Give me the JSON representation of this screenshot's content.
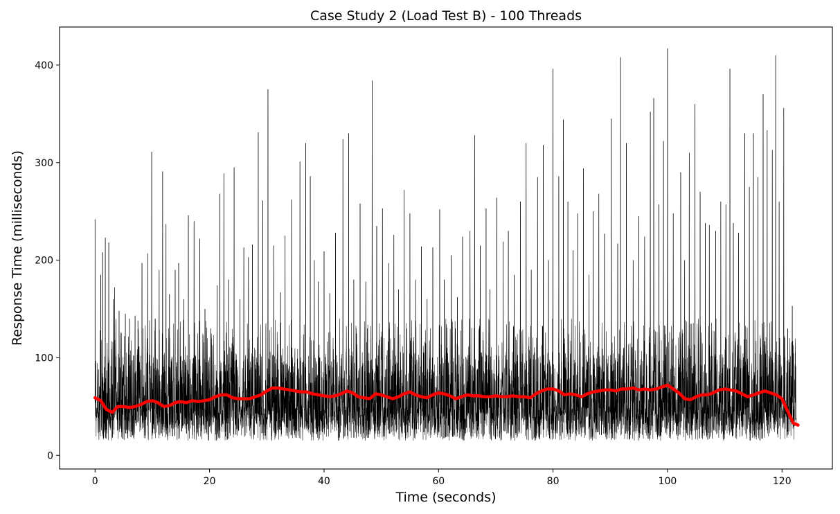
{
  "chart_data": {
    "type": "line",
    "title": "Case Study 2 (Load Test B) - 100 Threads",
    "xlabel": "Time (seconds)",
    "ylabel": "Response Time (milliseconds)",
    "xlim": [
      -6.2,
      128.8
    ],
    "ylim": [
      -14,
      439
    ],
    "x_ticks": [
      0,
      20,
      40,
      60,
      80,
      100,
      120
    ],
    "y_ticks": [
      0,
      100,
      200,
      300,
      400
    ],
    "grid": false,
    "legend": "none",
    "colors": {
      "raw": "#000000",
      "smoothed": "#ff0000",
      "frame": "#000000"
    },
    "series": [
      {
        "role": "raw",
        "x_range": [
          0,
          122.5
        ],
        "baseline_band": [
          15,
          90
        ],
        "peaks": [
          {
            "x": 0.0,
            "y": 242
          },
          {
            "x": 0.6,
            "y": 88
          },
          {
            "x": 1.0,
            "y": 185
          },
          {
            "x": 1.3,
            "y": 208
          },
          {
            "x": 1.8,
            "y": 223
          },
          {
            "x": 2.4,
            "y": 218
          },
          {
            "x": 3.2,
            "y": 160
          },
          {
            "x": 3.4,
            "y": 172
          },
          {
            "x": 4.2,
            "y": 148
          },
          {
            "x": 5.3,
            "y": 145
          },
          {
            "x": 6.0,
            "y": 140
          },
          {
            "x": 7.0,
            "y": 143
          },
          {
            "x": 7.5,
            "y": 138
          },
          {
            "x": 8.2,
            "y": 197
          },
          {
            "x": 9.2,
            "y": 207
          },
          {
            "x": 9.9,
            "y": 311
          },
          {
            "x": 10.5,
            "y": 140
          },
          {
            "x": 11.2,
            "y": 190
          },
          {
            "x": 11.8,
            "y": 291
          },
          {
            "x": 12.4,
            "y": 237
          },
          {
            "x": 13.0,
            "y": 165
          },
          {
            "x": 14.0,
            "y": 190
          },
          {
            "x": 14.6,
            "y": 197
          },
          {
            "x": 15.5,
            "y": 160
          },
          {
            "x": 16.3,
            "y": 246
          },
          {
            "x": 17.3,
            "y": 240
          },
          {
            "x": 18.3,
            "y": 222
          },
          {
            "x": 19.2,
            "y": 150
          },
          {
            "x": 20.2,
            "y": 130
          },
          {
            "x": 21.3,
            "y": 174
          },
          {
            "x": 21.8,
            "y": 268
          },
          {
            "x": 22.5,
            "y": 289
          },
          {
            "x": 23.3,
            "y": 180
          },
          {
            "x": 24.3,
            "y": 295
          },
          {
            "x": 25.3,
            "y": 160
          },
          {
            "x": 26.0,
            "y": 213
          },
          {
            "x": 26.8,
            "y": 203
          },
          {
            "x": 27.5,
            "y": 216
          },
          {
            "x": 28.5,
            "y": 331
          },
          {
            "x": 29.3,
            "y": 261
          },
          {
            "x": 30.2,
            "y": 375
          },
          {
            "x": 31.2,
            "y": 215
          },
          {
            "x": 32.4,
            "y": 167
          },
          {
            "x": 33.2,
            "y": 225
          },
          {
            "x": 34.3,
            "y": 262
          },
          {
            "x": 35.8,
            "y": 301
          },
          {
            "x": 36.8,
            "y": 320
          },
          {
            "x": 37.6,
            "y": 286
          },
          {
            "x": 38.3,
            "y": 200
          },
          {
            "x": 39.0,
            "y": 178
          },
          {
            "x": 40.0,
            "y": 209
          },
          {
            "x": 41.0,
            "y": 166
          },
          {
            "x": 42.0,
            "y": 228
          },
          {
            "x": 43.3,
            "y": 324
          },
          {
            "x": 44.3,
            "y": 330
          },
          {
            "x": 45.2,
            "y": 180
          },
          {
            "x": 46.3,
            "y": 258
          },
          {
            "x": 47.3,
            "y": 178
          },
          {
            "x": 48.4,
            "y": 384
          },
          {
            "x": 49.2,
            "y": 235
          },
          {
            "x": 50.2,
            "y": 253
          },
          {
            "x": 51.3,
            "y": 197
          },
          {
            "x": 52.2,
            "y": 226
          },
          {
            "x": 53.0,
            "y": 170
          },
          {
            "x": 54.0,
            "y": 272
          },
          {
            "x": 55.0,
            "y": 248
          },
          {
            "x": 56.0,
            "y": 180
          },
          {
            "x": 57.0,
            "y": 214
          },
          {
            "x": 58.0,
            "y": 160
          },
          {
            "x": 59.0,
            "y": 213
          },
          {
            "x": 60.2,
            "y": 252
          },
          {
            "x": 61.0,
            "y": 180
          },
          {
            "x": 62.2,
            "y": 205
          },
          {
            "x": 63.3,
            "y": 162
          },
          {
            "x": 64.2,
            "y": 224
          },
          {
            "x": 65.5,
            "y": 230
          },
          {
            "x": 66.3,
            "y": 328
          },
          {
            "x": 67.3,
            "y": 215
          },
          {
            "x": 68.3,
            "y": 253
          },
          {
            "x": 69.0,
            "y": 170
          },
          {
            "x": 70.2,
            "y": 264
          },
          {
            "x": 71.3,
            "y": 219
          },
          {
            "x": 72.2,
            "y": 230
          },
          {
            "x": 73.2,
            "y": 185
          },
          {
            "x": 74.3,
            "y": 260
          },
          {
            "x": 75.3,
            "y": 320
          },
          {
            "x": 76.2,
            "y": 190
          },
          {
            "x": 77.3,
            "y": 285
          },
          {
            "x": 78.3,
            "y": 318
          },
          {
            "x": 79.2,
            "y": 200
          },
          {
            "x": 80.0,
            "y": 396
          },
          {
            "x": 81.0,
            "y": 286
          },
          {
            "x": 81.8,
            "y": 344
          },
          {
            "x": 82.6,
            "y": 260
          },
          {
            "x": 83.5,
            "y": 210
          },
          {
            "x": 84.3,
            "y": 248
          },
          {
            "x": 85.3,
            "y": 294
          },
          {
            "x": 86.3,
            "y": 185
          },
          {
            "x": 87.0,
            "y": 250
          },
          {
            "x": 88.0,
            "y": 268
          },
          {
            "x": 89.0,
            "y": 227
          },
          {
            "x": 90.2,
            "y": 345
          },
          {
            "x": 91.3,
            "y": 217
          },
          {
            "x": 91.8,
            "y": 408
          },
          {
            "x": 92.8,
            "y": 320
          },
          {
            "x": 94.0,
            "y": 200
          },
          {
            "x": 95.0,
            "y": 245
          },
          {
            "x": 96.0,
            "y": 224
          },
          {
            "x": 97.0,
            "y": 352
          },
          {
            "x": 97.6,
            "y": 366
          },
          {
            "x": 98.5,
            "y": 257
          },
          {
            "x": 99.3,
            "y": 322
          },
          {
            "x": 100.0,
            "y": 417
          },
          {
            "x": 101.0,
            "y": 248
          },
          {
            "x": 102.3,
            "y": 290
          },
          {
            "x": 103.0,
            "y": 200
          },
          {
            "x": 103.8,
            "y": 310
          },
          {
            "x": 104.8,
            "y": 360
          },
          {
            "x": 105.7,
            "y": 270
          },
          {
            "x": 106.6,
            "y": 238
          },
          {
            "x": 107.3,
            "y": 236
          },
          {
            "x": 108.4,
            "y": 230
          },
          {
            "x": 109.3,
            "y": 260
          },
          {
            "x": 110.2,
            "y": 257
          },
          {
            "x": 110.9,
            "y": 396
          },
          {
            "x": 111.5,
            "y": 238
          },
          {
            "x": 112.4,
            "y": 228
          },
          {
            "x": 113.5,
            "y": 330
          },
          {
            "x": 114.3,
            "y": 275
          },
          {
            "x": 115.0,
            "y": 330
          },
          {
            "x": 115.8,
            "y": 285
          },
          {
            "x": 116.7,
            "y": 370
          },
          {
            "x": 117.4,
            "y": 333
          },
          {
            "x": 118.3,
            "y": 313
          },
          {
            "x": 118.9,
            "y": 410
          },
          {
            "x": 119.5,
            "y": 260
          },
          {
            "x": 120.3,
            "y": 356
          },
          {
            "x": 121.0,
            "y": 130
          },
          {
            "x": 121.8,
            "y": 153
          },
          {
            "x": 122.3,
            "y": 105
          }
        ]
      },
      {
        "role": "smoothed",
        "points": [
          {
            "x": 0,
            "y": 59
          },
          {
            "x": 1,
            "y": 56
          },
          {
            "x": 2,
            "y": 47
          },
          {
            "x": 3,
            "y": 44
          },
          {
            "x": 4,
            "y": 50
          },
          {
            "x": 5,
            "y": 50
          },
          {
            "x": 6,
            "y": 49
          },
          {
            "x": 7,
            "y": 50
          },
          {
            "x": 8,
            "y": 52
          },
          {
            "x": 9,
            "y": 55
          },
          {
            "x": 10,
            "y": 56
          },
          {
            "x": 11,
            "y": 54
          },
          {
            "x": 12,
            "y": 50
          },
          {
            "x": 13,
            "y": 51
          },
          {
            "x": 14,
            "y": 54
          },
          {
            "x": 15,
            "y": 55
          },
          {
            "x": 16,
            "y": 54
          },
          {
            "x": 17,
            "y": 56
          },
          {
            "x": 18,
            "y": 55
          },
          {
            "x": 19,
            "y": 56
          },
          {
            "x": 20,
            "y": 57
          },
          {
            "x": 21,
            "y": 60
          },
          {
            "x": 22,
            "y": 62
          },
          {
            "x": 23,
            "y": 62
          },
          {
            "x": 24,
            "y": 59
          },
          {
            "x": 25,
            "y": 58
          },
          {
            "x": 26,
            "y": 58
          },
          {
            "x": 27,
            "y": 58
          },
          {
            "x": 28,
            "y": 60
          },
          {
            "x": 29,
            "y": 62
          },
          {
            "x": 30,
            "y": 66
          },
          {
            "x": 31,
            "y": 69
          },
          {
            "x": 32,
            "y": 69
          },
          {
            "x": 33,
            "y": 68
          },
          {
            "x": 34,
            "y": 67
          },
          {
            "x": 35,
            "y": 66
          },
          {
            "x": 36,
            "y": 65
          },
          {
            "x": 37,
            "y": 65
          },
          {
            "x": 38,
            "y": 63
          },
          {
            "x": 39,
            "y": 62
          },
          {
            "x": 40,
            "y": 61
          },
          {
            "x": 41,
            "y": 60
          },
          {
            "x": 42,
            "y": 61
          },
          {
            "x": 43,
            "y": 63
          },
          {
            "x": 44,
            "y": 66
          },
          {
            "x": 45,
            "y": 64
          },
          {
            "x": 46,
            "y": 60
          },
          {
            "x": 47,
            "y": 59
          },
          {
            "x": 48,
            "y": 58
          },
          {
            "x": 49,
            "y": 63
          },
          {
            "x": 50,
            "y": 62
          },
          {
            "x": 51,
            "y": 60
          },
          {
            "x": 52,
            "y": 58
          },
          {
            "x": 53,
            "y": 60
          },
          {
            "x": 54,
            "y": 63
          },
          {
            "x": 55,
            "y": 65
          },
          {
            "x": 56,
            "y": 62
          },
          {
            "x": 57,
            "y": 60
          },
          {
            "x": 58,
            "y": 59
          },
          {
            "x": 59,
            "y": 62
          },
          {
            "x": 60,
            "y": 64
          },
          {
            "x": 61,
            "y": 63
          },
          {
            "x": 62,
            "y": 61
          },
          {
            "x": 63,
            "y": 58
          },
          {
            "x": 64,
            "y": 60
          },
          {
            "x": 65,
            "y": 62
          },
          {
            "x": 66,
            "y": 61
          },
          {
            "x": 67,
            "y": 61
          },
          {
            "x": 68,
            "y": 60
          },
          {
            "x": 69,
            "y": 60
          },
          {
            "x": 70,
            "y": 61
          },
          {
            "x": 71,
            "y": 60
          },
          {
            "x": 72,
            "y": 60
          },
          {
            "x": 73,
            "y": 61
          },
          {
            "x": 74,
            "y": 60
          },
          {
            "x": 75,
            "y": 60
          },
          {
            "x": 76,
            "y": 59
          },
          {
            "x": 77,
            "y": 63
          },
          {
            "x": 78,
            "y": 66
          },
          {
            "x": 79,
            "y": 68
          },
          {
            "x": 80,
            "y": 68
          },
          {
            "x": 81,
            "y": 66
          },
          {
            "x": 82,
            "y": 62
          },
          {
            "x": 83,
            "y": 63
          },
          {
            "x": 84,
            "y": 62
          },
          {
            "x": 85,
            "y": 60
          },
          {
            "x": 86,
            "y": 63
          },
          {
            "x": 87,
            "y": 65
          },
          {
            "x": 88,
            "y": 66
          },
          {
            "x": 89,
            "y": 67
          },
          {
            "x": 90,
            "y": 67
          },
          {
            "x": 91,
            "y": 66
          },
          {
            "x": 92,
            "y": 68
          },
          {
            "x": 93,
            "y": 68
          },
          {
            "x": 94,
            "y": 69
          },
          {
            "x": 95,
            "y": 67
          },
          {
            "x": 96,
            "y": 68
          },
          {
            "x": 97,
            "y": 67
          },
          {
            "x": 98,
            "y": 68
          },
          {
            "x": 99,
            "y": 70
          },
          {
            "x": 100,
            "y": 72
          },
          {
            "x": 101,
            "y": 68
          },
          {
            "x": 102,
            "y": 64
          },
          {
            "x": 103,
            "y": 58
          },
          {
            "x": 104,
            "y": 57
          },
          {
            "x": 105,
            "y": 60
          },
          {
            "x": 106,
            "y": 62
          },
          {
            "x": 107,
            "y": 62
          },
          {
            "x": 108,
            "y": 64
          },
          {
            "x": 109,
            "y": 67
          },
          {
            "x": 110,
            "y": 68
          },
          {
            "x": 111,
            "y": 67
          },
          {
            "x": 112,
            "y": 66
          },
          {
            "x": 113,
            "y": 63
          },
          {
            "x": 114,
            "y": 60
          },
          {
            "x": 115,
            "y": 62
          },
          {
            "x": 116,
            "y": 64
          },
          {
            "x": 117,
            "y": 66
          },
          {
            "x": 118,
            "y": 64
          },
          {
            "x": 119,
            "y": 62
          },
          {
            "x": 120,
            "y": 58
          },
          {
            "x": 121,
            "y": 45
          },
          {
            "x": 122,
            "y": 33
          },
          {
            "x": 122.8,
            "y": 31
          }
        ]
      }
    ]
  }
}
